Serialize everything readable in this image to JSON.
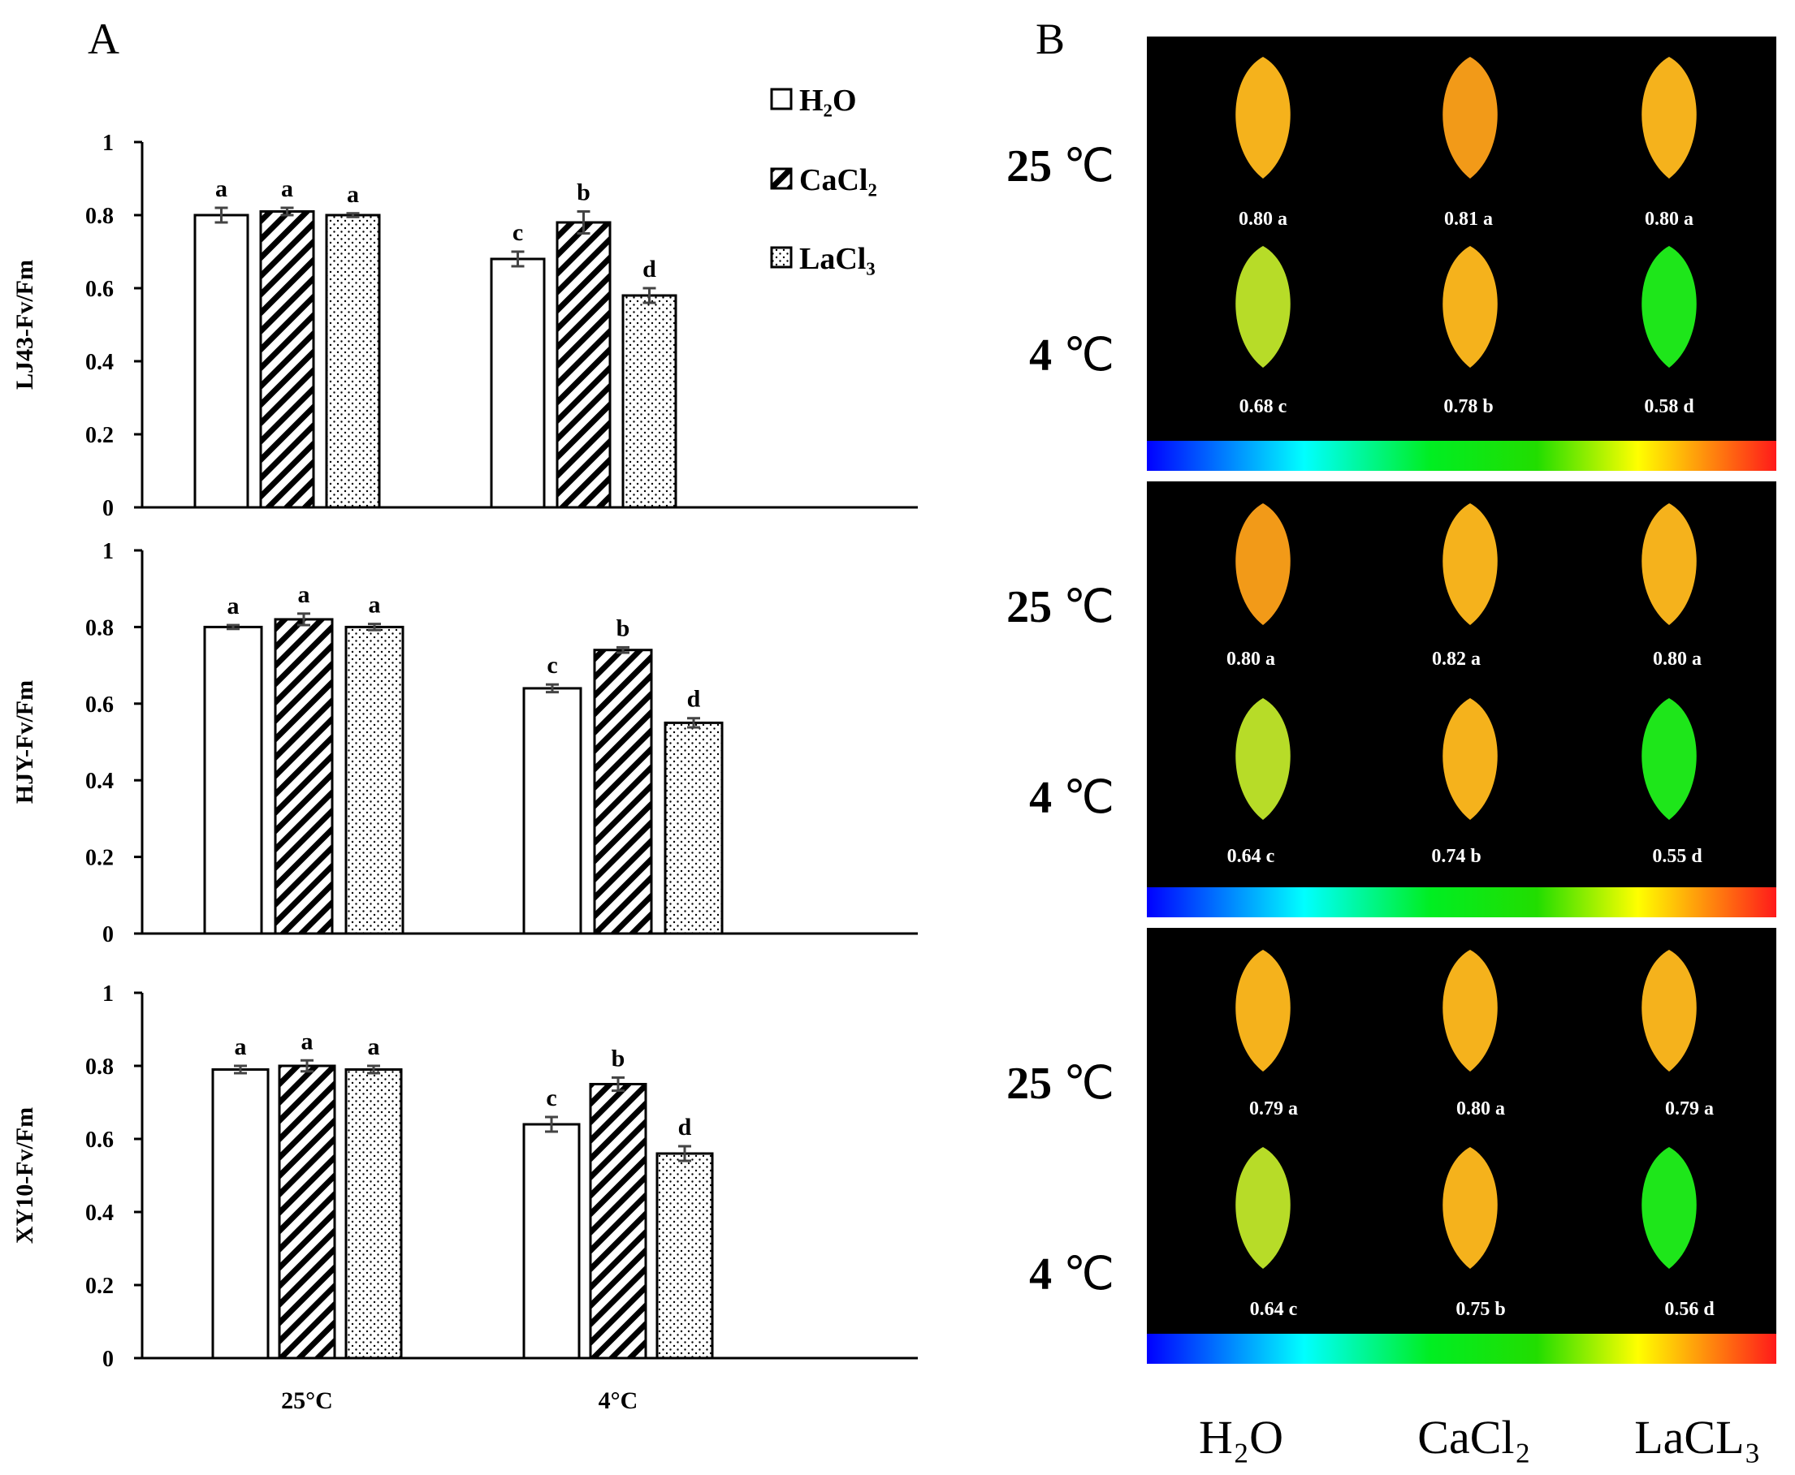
{
  "panel_a_label": "A",
  "panel_b_label": "B",
  "legend": [
    {
      "label": "H₂O",
      "pattern": "white"
    },
    {
      "label": "CaCl₂",
      "pattern": "hatch"
    },
    {
      "label": "LaCl₃",
      "pattern": "dots"
    }
  ],
  "chart_data": [
    {
      "type": "bar",
      "ylabel": "LJ43-Fv/Fm",
      "ylim": [
        0,
        1
      ],
      "yticks": [
        "0",
        "0.2",
        "0.4",
        "0.6",
        "0.8",
        "1"
      ],
      "categories": [
        "25°C",
        "4°C"
      ],
      "series": [
        {
          "name": "H₂O",
          "values": [
            0.8,
            0.68
          ],
          "errors": [
            0.02,
            0.02
          ],
          "letters": [
            "a",
            "c"
          ]
        },
        {
          "name": "CaCl₂",
          "values": [
            0.81,
            0.78
          ],
          "errors": [
            0.01,
            0.03
          ],
          "letters": [
            "a",
            "b"
          ]
        },
        {
          "name": "LaCl₃",
          "values": [
            0.8,
            0.58
          ],
          "errors": [
            0.005,
            0.02
          ],
          "letters": [
            "a",
            "d"
          ]
        }
      ]
    },
    {
      "type": "bar",
      "ylabel": "HJY-Fv/Fm",
      "ylim": [
        0,
        1
      ],
      "yticks": [
        "0",
        "0.2",
        "0.4",
        "0.6",
        "0.8",
        "1"
      ],
      "categories": [
        "25°C",
        "4°C"
      ],
      "series": [
        {
          "name": "H₂O",
          "values": [
            0.8,
            0.64
          ],
          "errors": [
            0.005,
            0.01
          ],
          "letters": [
            "a",
            "c"
          ]
        },
        {
          "name": "CaCl₂",
          "values": [
            0.82,
            0.74
          ],
          "errors": [
            0.015,
            0.007
          ],
          "letters": [
            "a",
            "b"
          ]
        },
        {
          "name": "LaCl₃",
          "values": [
            0.8,
            0.55
          ],
          "errors": [
            0.008,
            0.012
          ],
          "letters": [
            "a",
            "d"
          ]
        }
      ]
    },
    {
      "type": "bar",
      "ylabel": "XY10-Fv/Fm",
      "ylim": [
        0,
        1
      ],
      "yticks": [
        "0",
        "0.2",
        "0.4",
        "0.6",
        "0.8",
        "1"
      ],
      "categories": [
        "25°C",
        "4°C"
      ],
      "xtick_labels": [
        "25°C",
        "4°C"
      ],
      "series": [
        {
          "name": "H₂O",
          "values": [
            0.79,
            0.64
          ],
          "errors": [
            0.01,
            0.02
          ],
          "letters": [
            "a",
            "c"
          ]
        },
        {
          "name": "CaCl₂",
          "values": [
            0.8,
            0.75
          ],
          "errors": [
            0.015,
            0.018
          ],
          "letters": [
            "a",
            "b"
          ]
        },
        {
          "name": "LaCl₃",
          "values": [
            0.79,
            0.56
          ],
          "errors": [
            0.01,
            0.02
          ],
          "letters": [
            "a",
            "d"
          ]
        }
      ]
    }
  ],
  "panel_b": {
    "temp_labels": [
      "25 ℃",
      "4 ℃"
    ],
    "treatments": [
      "H₂O",
      "CaCl₂",
      "LaCL₃"
    ],
    "groups": [
      {
        "row_25": [
          "0.80 a",
          "0.81 a",
          "0.80 a"
        ],
        "row_4": [
          "0.68 c",
          "0.78 b",
          "0.58 d"
        ]
      },
      {
        "row_25": [
          "0.80 a",
          "0.82 a",
          "0.80 a"
        ],
        "row_4": [
          "0.64 c",
          "0.74 b",
          "0.55 d"
        ]
      },
      {
        "row_25": [
          "0.79 a",
          "0.80 a",
          "0.79 a"
        ],
        "row_4": [
          "0.64 c",
          "0.75 b",
          "0.56 d"
        ]
      }
    ],
    "leaf_colors": {
      "yellow": "#f5b21c",
      "orange": "#f29a18",
      "green": "#1ee61a",
      "yellow_green": "#b7dc28"
    }
  }
}
